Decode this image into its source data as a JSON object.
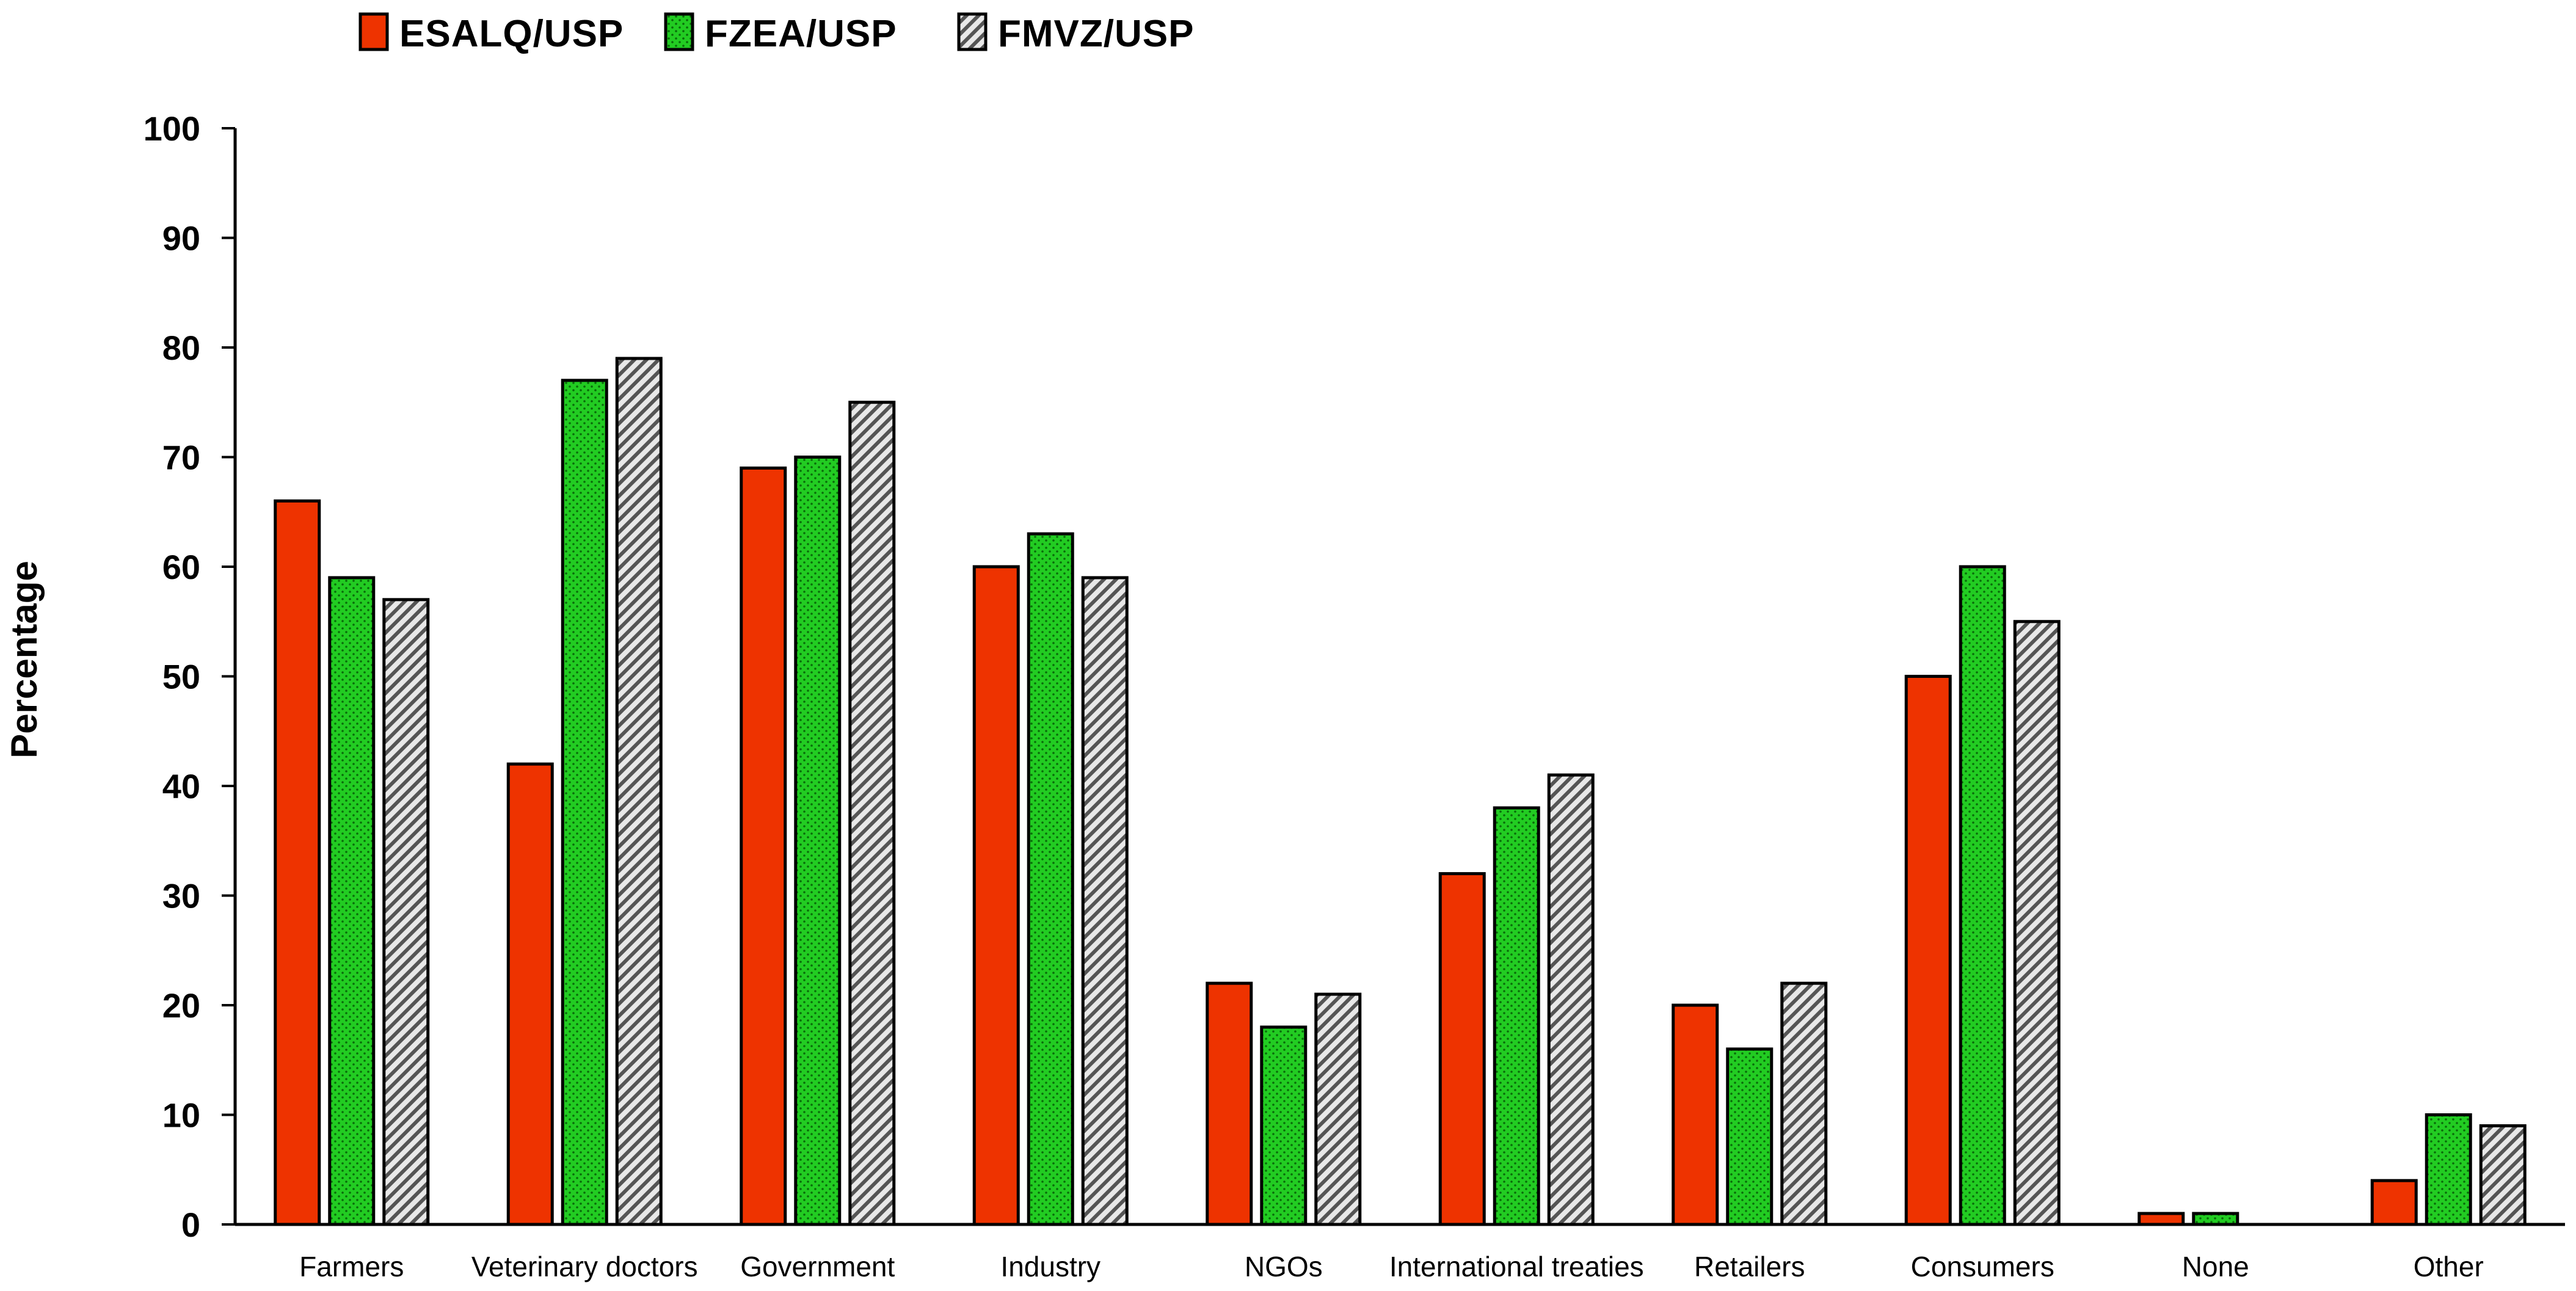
{
  "chart_data": {
    "type": "bar",
    "title": "",
    "xlabel": "",
    "ylabel": "Percentage",
    "ylim": [
      0,
      100
    ],
    "yticks": [
      0,
      10,
      20,
      30,
      40,
      50,
      60,
      70,
      80,
      90,
      100
    ],
    "grid": false,
    "legend_position": "top",
    "categories": [
      "Farmers",
      "Veterinary doctors",
      "Government",
      "Industry",
      "NGOs",
      "International treaties",
      "Retailers",
      "Consumers",
      "None",
      "Other"
    ],
    "series": [
      {
        "name": "ESALQ/USP",
        "color": "#ee3300",
        "pattern": "solid",
        "values": [
          66,
          42,
          69,
          60,
          22,
          32,
          20,
          50,
          1,
          4
        ]
      },
      {
        "name": "FZEA/USP",
        "color": "#22cc22",
        "pattern": "dots",
        "values": [
          59,
          77,
          70,
          63,
          18,
          38,
          16,
          60,
          1,
          10
        ]
      },
      {
        "name": "FMVZ/USP",
        "color": "#9a9a9a",
        "pattern": "hatch",
        "values": [
          57,
          79,
          75,
          59,
          21,
          41,
          22,
          55,
          0,
          9
        ]
      }
    ]
  }
}
